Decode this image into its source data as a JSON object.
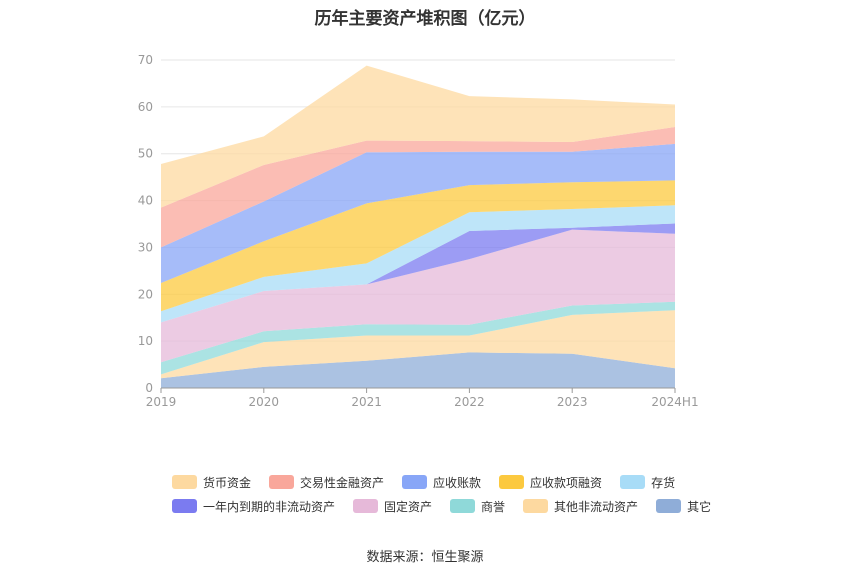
{
  "source": "数据来源：恒生聚源",
  "chart_data": {
    "type": "area",
    "title": "历年主要资产堆积图（亿元）",
    "categories": [
      "2019",
      "2020",
      "2021",
      "2022",
      "2023",
      "2024H1"
    ],
    "y_ticks": [
      "0",
      "10",
      "20",
      "30",
      "40",
      "50",
      "60",
      "70"
    ],
    "ylim": [
      0,
      70
    ],
    "stacked": true,
    "grid": true,
    "legend_position": "bottom",
    "series": [
      {
        "name": "其它",
        "color": "#8fadd8",
        "values": [
          2.1,
          4.5,
          5.8,
          7.6,
          7.3,
          4.2
        ]
      },
      {
        "name": "其他非流动资产",
        "color": "#fdd9a0",
        "values": [
          0.8,
          5.3,
          5.4,
          3.6,
          8.3,
          12.4
        ]
      },
      {
        "name": "商誉",
        "color": "#8fd9d9",
        "values": [
          2.6,
          2.3,
          2.4,
          2.3,
          2.0,
          1.8
        ]
      },
      {
        "name": "固定资产",
        "color": "#e6b9d9",
        "values": [
          8.5,
          8.6,
          8.5,
          14.0,
          16.2,
          14.5
        ]
      },
      {
        "name": "一年内到期的非流动资产",
        "color": "#7b7bf0",
        "values": [
          0,
          0,
          0,
          6.0,
          0.4,
          2.2
        ]
      },
      {
        "name": "存货",
        "color": "#a8dcf7",
        "values": [
          2.4,
          3.0,
          4.5,
          4.0,
          4.0,
          3.9
        ]
      },
      {
        "name": "应收款项融资",
        "color": "#fcc93f",
        "values": [
          6.0,
          7.6,
          12.8,
          5.8,
          5.7,
          5.3
        ]
      },
      {
        "name": "应收账款",
        "color": "#88a6f7",
        "values": [
          7.6,
          8.5,
          10.9,
          7.1,
          6.5,
          7.8
        ]
      },
      {
        "name": "交易性金融资产",
        "color": "#f9a79b",
        "values": [
          8.5,
          7.8,
          2.5,
          2.3,
          2.1,
          3.6
        ]
      },
      {
        "name": "货币资金",
        "color": "#fdd9a0",
        "values": [
          9.3,
          6.1,
          16.0,
          9.6,
          9.1,
          4.8
        ]
      }
    ],
    "legend": [
      [
        "货币资金",
        "交易性金融资产",
        "应收账款",
        "应收款项融资",
        "存货"
      ],
      [
        "一年内到期的非流动资产",
        "固定资产",
        "商誉",
        "其他非流动资产",
        "其它"
      ]
    ]
  }
}
